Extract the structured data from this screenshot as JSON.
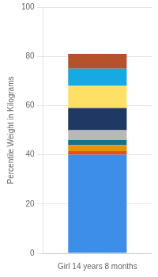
{
  "chart_data": {
    "type": "bar",
    "stacked": true,
    "categories": [
      "Girl 14 years 8 months"
    ],
    "series": [
      {
        "color": "#3D8EE8",
        "values": [
          40
        ]
      },
      {
        "color": "#E84E1B",
        "values": [
          1.5
        ]
      },
      {
        "color": "#E8920A",
        "values": [
          2.5
        ]
      },
      {
        "color": "#1A6F8A",
        "values": [
          2
        ]
      },
      {
        "color": "#B8B8B8",
        "values": [
          4
        ]
      },
      {
        "color": "#1F3864",
        "values": [
          9
        ]
      },
      {
        "color": "#FFE066",
        "values": [
          9
        ]
      },
      {
        "color": "#17A9E1",
        "values": [
          7
        ]
      },
      {
        "color": "#B5522B",
        "values": [
          6
        ]
      }
    ],
    "ylabel": "Percentile Weight in Kilograms",
    "ylim": [
      0,
      100
    ],
    "yticks": [
      0,
      20,
      40,
      60,
      80,
      100
    ],
    "grid": true
  }
}
